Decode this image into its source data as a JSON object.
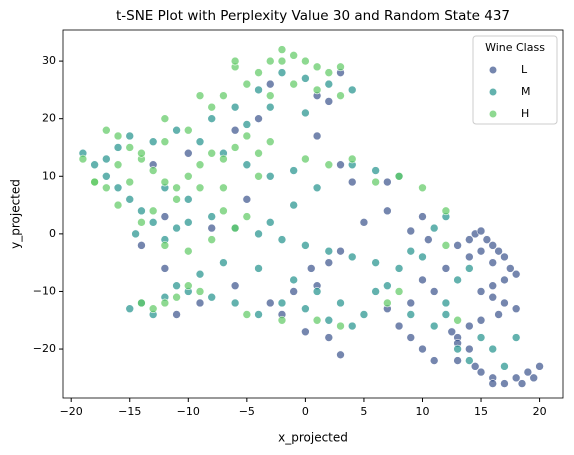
{
  "chart_data": {
    "type": "scatter",
    "title": "t-SNE Plot with Perplexity Value 30 and Random State 437",
    "x_label": "x_projected",
    "y_label": "y_projected",
    "legend_title": "Wine Class",
    "legend_position": "upper right",
    "xlim": [
      -20.7,
      22
    ],
    "ylim": [
      -28.5,
      35.4
    ],
    "xticks": [
      {
        "value": -20,
        "label": "−20"
      },
      {
        "value": -15,
        "label": "−15"
      },
      {
        "value": -10,
        "label": "−10"
      },
      {
        "value": -5,
        "label": "−5"
      },
      0,
      5,
      10,
      15,
      20
    ],
    "yticks": [
      {
        "value": -20,
        "label": "−20"
      },
      {
        "value": -10,
        "label": "−10"
      },
      0,
      10,
      20,
      30
    ],
    "series": [
      {
        "name": "L",
        "color": "#3b528b",
        "x": [
          13,
          14,
          14.5,
          15,
          15.5,
          16,
          16.5,
          17,
          15,
          14,
          16,
          17.5,
          18,
          17,
          16,
          15,
          16,
          17,
          18,
          16.5,
          15,
          14,
          13,
          14,
          13,
          15,
          16,
          17,
          18,
          19,
          20,
          19.5,
          18.5,
          16,
          14.5,
          13,
          12.5,
          11,
          10,
          9,
          8,
          7,
          9,
          11,
          10,
          12,
          10.5,
          9,
          10,
          7,
          5,
          3,
          2,
          0.5,
          1,
          -1,
          -2,
          0,
          2,
          3,
          -3,
          -6,
          -9,
          -11,
          -12,
          -8,
          -5,
          -10,
          -13,
          -14,
          -12,
          3,
          4,
          7,
          2,
          1,
          3,
          -3,
          -4,
          1,
          -6
        ],
        "values": [
          -2,
          -1,
          0,
          0.5,
          -1,
          -2,
          -3,
          -4,
          -3,
          -4,
          -5,
          -6,
          -7,
          -8,
          -9,
          -10,
          -11,
          -12,
          -13,
          -14,
          -15,
          -16,
          -18,
          -20,
          -22,
          -24,
          -25,
          -26,
          -25,
          -24,
          -23,
          -25,
          -26,
          -26,
          -23,
          -19,
          -17,
          -22,
          -20,
          -18,
          -16,
          -13,
          -12,
          -10,
          -8,
          -6,
          -1,
          0.5,
          3,
          4,
          2,
          -3,
          -5,
          -6,
          -9,
          -10,
          -14,
          -17,
          -18,
          -21,
          -12,
          -9,
          -12,
          -14,
          3,
          1,
          6,
          14,
          12,
          -2,
          -6,
          12,
          9,
          9,
          23,
          24,
          28,
          26,
          20,
          17,
          18
        ]
      },
      {
        "name": "M",
        "color": "#21918c",
        "x": [
          -19,
          -18,
          -17,
          -16,
          -15,
          -14,
          -13,
          -14.5,
          -12,
          -11,
          -10,
          -8,
          -6,
          -4,
          -2,
          0,
          2,
          4,
          6,
          8,
          9,
          11,
          12,
          8,
          6,
          4,
          -1,
          -3,
          -5,
          -7,
          -9,
          -11,
          -13,
          -15,
          -16,
          -17,
          -8,
          -6,
          -4,
          -2,
          0,
          2,
          4,
          -3,
          -5,
          0,
          -14,
          -12,
          -10,
          -8,
          -6,
          -4,
          -2,
          0,
          2,
          4,
          6,
          7,
          9,
          11,
          12,
          13,
          14,
          13,
          14,
          16,
          17,
          15,
          18,
          12,
          10,
          -7,
          -9,
          -11,
          -4,
          -1,
          1,
          3,
          5,
          -3,
          -1,
          1,
          -12,
          -10,
          -15,
          -13
        ],
        "values": [
          14,
          12,
          10,
          8,
          6,
          4,
          2,
          0,
          -1,
          1,
          2,
          3,
          1,
          0,
          -1,
          -2,
          -3,
          -4,
          -5,
          -6,
          -3,
          1,
          3,
          10,
          11,
          12,
          11,
          10,
          12,
          14,
          16,
          18,
          16,
          17,
          15,
          13,
          20,
          22,
          25,
          28,
          27,
          26,
          25,
          22,
          19,
          21,
          -12,
          -11,
          -10,
          -11,
          -12,
          -14,
          -12,
          -13,
          -15,
          -16,
          -10,
          -9,
          -14,
          -16,
          -12,
          -8,
          -6,
          -20,
          -22,
          -20,
          -23,
          -18,
          -18,
          -14,
          -4,
          -5,
          -7,
          -9,
          -6,
          -8,
          -10,
          -12,
          -14,
          2,
          5,
          8,
          8,
          6,
          -13,
          -14
        ]
      },
      {
        "name": "H",
        "color": "#5ec962",
        "x": [
          -19,
          -18,
          -17,
          -16,
          -15,
          -14,
          -13,
          -12,
          -11,
          -10,
          -9,
          -8,
          -7,
          -6,
          -5,
          -4,
          -3,
          -7,
          -9,
          -11,
          -13,
          -14,
          -12,
          -10,
          -8,
          -6,
          -7,
          -5,
          -4,
          -3,
          -2,
          -1,
          0,
          1,
          2,
          3,
          -5,
          -6,
          -7,
          -3,
          -1,
          1,
          3,
          0,
          2,
          4,
          6,
          8,
          10,
          -14,
          -13,
          -12,
          -11,
          -10,
          -9,
          -5,
          -2,
          1,
          3,
          7,
          8,
          -16,
          -17,
          -18,
          -15,
          -16,
          -14,
          -12,
          12,
          13,
          12,
          -4,
          -8,
          -10,
          -12,
          -9,
          -6,
          -2
        ],
        "values": [
          13,
          9,
          18,
          17,
          15,
          13,
          11,
          9,
          8,
          10,
          12,
          14,
          13,
          15,
          17,
          14,
          16,
          8,
          8,
          6,
          4,
          2,
          -2,
          -3,
          -1,
          1,
          4,
          3,
          28,
          30,
          32,
          31,
          30,
          29,
          28,
          29,
          26,
          29,
          24,
          24,
          26,
          25,
          24,
          13,
          12,
          13,
          9,
          10,
          8,
          -12,
          -13,
          -12,
          -11,
          -9,
          -10,
          -14,
          -15,
          -15,
          -16,
          -12,
          -10,
          12,
          8,
          9,
          9,
          5,
          14,
          16,
          4,
          -15,
          -2,
          10,
          22,
          18,
          20,
          24,
          30,
          30
        ]
      }
    ]
  }
}
